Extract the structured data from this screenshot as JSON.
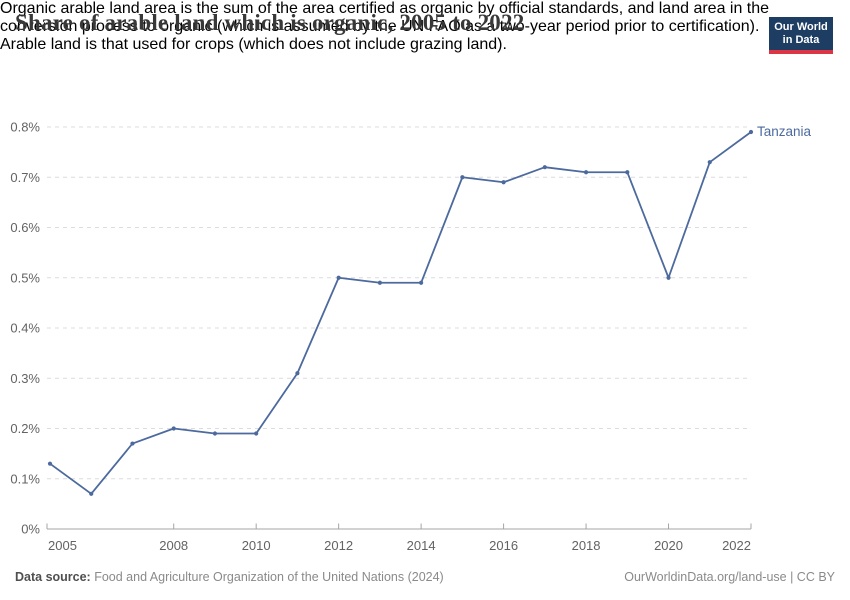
{
  "header": {
    "title": "Share of arable land which is organic, 2005 to 2022",
    "subtitle_lines": [
      "Organic arable land area is the sum of the area certified as organic by official standards, and land area in the",
      "conversion process to organic (which is assumed by the UN FAO as a two-year period prior to certification).",
      "Arable land is that used for crops (which does not include grazing land)."
    ],
    "logo": {
      "line1": "Our World",
      "line2": "in Data"
    }
  },
  "colors": {
    "line_blue": "#4C6A9E",
    "logo_navy": "#1d3d63",
    "logo_red": "#dc3545",
    "gridline": "#dcdcdc",
    "axis": "#a5a5a5",
    "tick_text": "#636363"
  },
  "chart_data": {
    "type": "line",
    "title": "Share of arable land which is organic, 2005 to 2022",
    "xlabel": "",
    "ylabel": "",
    "unit": "%",
    "x": [
      2005,
      2006,
      2007,
      2008,
      2009,
      2010,
      2011,
      2012,
      2013,
      2014,
      2015,
      2016,
      2017,
      2018,
      2019,
      2020,
      2021,
      2022
    ],
    "series": [
      {
        "name": "Tanzania",
        "color": "#4C6A9E",
        "values": [
          0.13,
          0.07,
          0.17,
          0.2,
          0.19,
          0.19,
          0.31,
          0.5,
          0.49,
          0.49,
          0.7,
          0.69,
          0.72,
          0.71,
          0.71,
          0.5,
          0.73,
          0.79
        ]
      }
    ],
    "xlim": [
      2005,
      2022
    ],
    "ylim": [
      0,
      0.8
    ],
    "x_ticks": [
      2005,
      2008,
      2010,
      2012,
      2014,
      2016,
      2018,
      2020,
      2022
    ],
    "y_ticks": [
      0,
      0.1,
      0.2,
      0.3,
      0.4,
      0.5,
      0.6,
      0.7,
      0.8
    ],
    "y_tick_labels": [
      "0%",
      "0.1%",
      "0.2%",
      "0.3%",
      "0.4%",
      "0.5%",
      "0.6%",
      "0.7%",
      "0.8%"
    ],
    "grid": "horizontal-dashed",
    "legend_position": "end-of-line-label"
  },
  "footer": {
    "datasource_label": "Data source:",
    "datasource_text": " Food and Agriculture Organization of the United Nations (2024)",
    "right_text": "OurWorldinData.org/land-use | CC BY"
  }
}
